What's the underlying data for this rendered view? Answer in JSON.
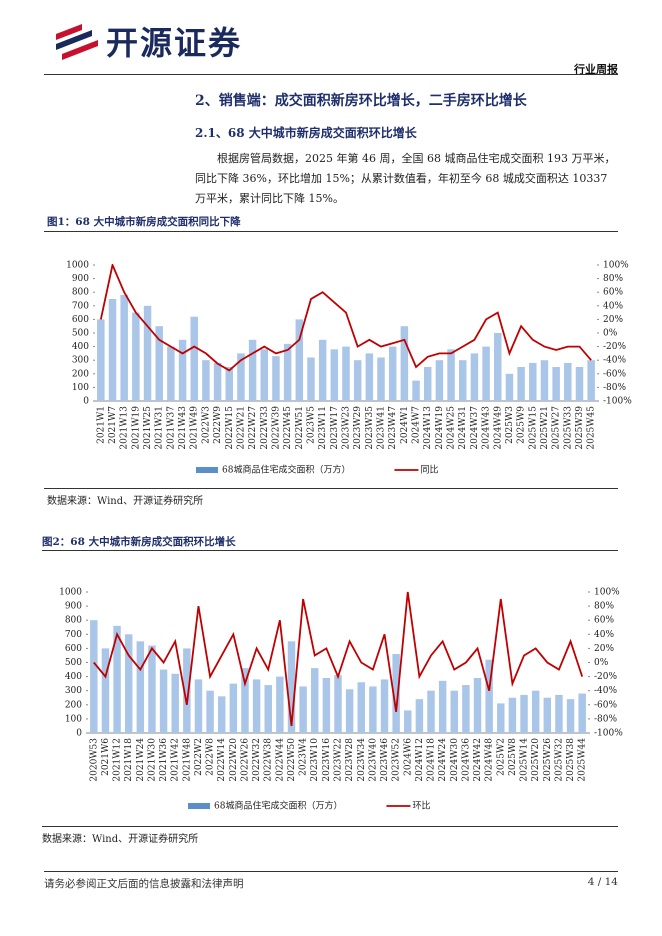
{
  "header": {
    "logo": "开源证券",
    "tag": "行业周报"
  },
  "section_title": "2、销售端：成交面积新房环比增长，二手房环比增长",
  "subsection_title": "2.1、68 大中城市新房成交面积环比增长",
  "paragraph": "根据房管局数据，2025 年第 46 周，全国 68 城商品住宅成交面积 193 万平米，同比下降 36%，环比增加 15%；从累计数值看，年初至今 68 城成交面积达 10337 万平米，累计同比下降 15%。",
  "chart_data": [
    {
      "type": "combo",
      "title": "图1：68 大中城市新房成交面积同比下降",
      "source": "数据来源：Wind、开源证券研究所",
      "categories": [
        "2021W1",
        "2021W7",
        "2021W13",
        "2021W19",
        "2021W25",
        "2021W31",
        "2021W37",
        "2021W43",
        "2021W49",
        "2022W3",
        "2022W9",
        "2022W15",
        "2022W21",
        "2022W27",
        "2022W33",
        "2022W39",
        "2022W45",
        "2022W51",
        "2023W5",
        "2023W11",
        "2023W17",
        "2023W23",
        "2023W29",
        "2023W35",
        "2023W41",
        "2023W47",
        "2024W1",
        "2024W7",
        "2024W13",
        "2024W19",
        "2024W25",
        "2024W31",
        "2024W37",
        "2024W43",
        "2024W49",
        "2025W3",
        "2025W9",
        "2025W15",
        "2025W21",
        "2025W27",
        "2025W33",
        "2025W39",
        "2025W45"
      ],
      "series": [
        {
          "name": "68城商品住宅成交面积（万方）",
          "color": "#a9c5e8",
          "kind": "bar",
          "values": [
            600,
            750,
            780,
            650,
            700,
            550,
            400,
            450,
            620,
            300,
            280,
            250,
            350,
            450,
            380,
            330,
            420,
            600,
            320,
            450,
            380,
            400,
            300,
            350,
            320,
            400,
            550,
            150,
            250,
            300,
            380,
            300,
            350,
            400,
            500,
            200,
            250,
            280,
            300,
            250,
            280,
            250,
            300
          ]
        },
        {
          "name": "同比",
          "color": "#c00000",
          "kind": "line",
          "axis": "y2",
          "values": [
            20,
            100,
            60,
            30,
            10,
            -10,
            -20,
            -30,
            -20,
            -30,
            -45,
            -55,
            -40,
            -30,
            -20,
            -30,
            -25,
            -10,
            50,
            60,
            45,
            30,
            -20,
            -10,
            -20,
            -15,
            -10,
            -50,
            -35,
            -30,
            -30,
            -20,
            -10,
            20,
            30,
            -30,
            10,
            -10,
            -20,
            -25,
            -20,
            -20,
            -40
          ]
        }
      ],
      "ylim": [
        0,
        1000
      ],
      "yticks": [
        0,
        100,
        200,
        300,
        400,
        500,
        600,
        700,
        800,
        900,
        1000
      ],
      "y2lim": [
        -100,
        100
      ],
      "y2ticks": [
        {
          "value": 100,
          "label": "100%"
        },
        {
          "value": 80,
          "label": "80%"
        },
        {
          "value": 60,
          "label": "60%"
        },
        {
          "value": 40,
          "label": "40%"
        },
        {
          "value": 20,
          "label": "20%"
        },
        {
          "value": 0,
          "label": "0%"
        },
        {
          "value": -20,
          "label": "-20%"
        },
        {
          "value": -40,
          "label": "-40%"
        },
        {
          "value": -60,
          "label": "-60%"
        },
        {
          "value": -80,
          "label": "-80%"
        },
        {
          "value": -100,
          "label": "-100%"
        }
      ]
    },
    {
      "type": "combo",
      "title": "图2：68 大中城市新房成交面积环比增长",
      "source": "数据来源：Wind、开源证券研究所",
      "categories": [
        "2020W53",
        "2021W6",
        "2021W12",
        "2021W18",
        "2021W24",
        "2021W30",
        "2021W36",
        "2021W42",
        "2021W48",
        "2022W2",
        "2022W8",
        "2022W14",
        "2022W20",
        "2022W26",
        "2022W32",
        "2022W38",
        "2022W44",
        "2022W50",
        "2023W4",
        "2023W10",
        "2023W16",
        "2023W22",
        "2023W28",
        "2023W34",
        "2023W40",
        "2023W46",
        "2023W52",
        "2024W6",
        "2024W12",
        "2024W18",
        "2024W24",
        "2024W30",
        "2024W36",
        "2024W42",
        "2024W48",
        "2025W2",
        "2025W8",
        "2025W14",
        "2025W20",
        "2025W26",
        "2025W32",
        "2025W38",
        "2025W44"
      ],
      "series": [
        {
          "name": "68城商品住宅成交面积（万方）",
          "color": "#a9c5e8",
          "kind": "bar",
          "values": [
            800,
            600,
            760,
            700,
            650,
            620,
            450,
            420,
            600,
            380,
            300,
            260,
            350,
            460,
            380,
            340,
            400,
            650,
            330,
            460,
            390,
            410,
            310,
            360,
            330,
            380,
            560,
            160,
            240,
            300,
            370,
            300,
            340,
            390,
            520,
            210,
            250,
            270,
            300,
            250,
            270,
            240,
            280
          ]
        },
        {
          "name": "环比",
          "color": "#c00000",
          "kind": "line",
          "axis": "y2",
          "values": [
            0,
            -20,
            40,
            10,
            -10,
            20,
            0,
            30,
            -60,
            80,
            -20,
            10,
            40,
            -30,
            20,
            -10,
            60,
            -90,
            90,
            10,
            20,
            -20,
            30,
            0,
            -10,
            40,
            -70,
            100,
            -20,
            10,
            30,
            -10,
            0,
            20,
            -40,
            90,
            -30,
            10,
            20,
            0,
            -10,
            30,
            -20
          ]
        }
      ],
      "ylim": [
        0,
        1000
      ],
      "yticks": [
        0,
        100,
        200,
        300,
        400,
        500,
        600,
        700,
        800,
        900,
        1000
      ],
      "y2lim": [
        -100,
        100
      ],
      "y2ticks": [
        {
          "value": 100,
          "label": "100%"
        },
        {
          "value": 80,
          "label": "80%"
        },
        {
          "value": 60,
          "label": "60%"
        },
        {
          "value": 40,
          "label": "40%"
        },
        {
          "value": 20,
          "label": "20%"
        },
        {
          "value": 0,
          "label": "0%"
        },
        {
          "value": -20,
          "label": "-20%"
        },
        {
          "value": -40,
          "label": "-40%"
        },
        {
          "value": -60,
          "label": "-60%"
        },
        {
          "value": -80,
          "label": "-80%"
        },
        {
          "value": -100,
          "label": "-100%"
        }
      ]
    }
  ],
  "footer": {
    "disclaimer": "请务必参阅正文后面的信息披露和法律声明",
    "page": "4 / 14"
  }
}
